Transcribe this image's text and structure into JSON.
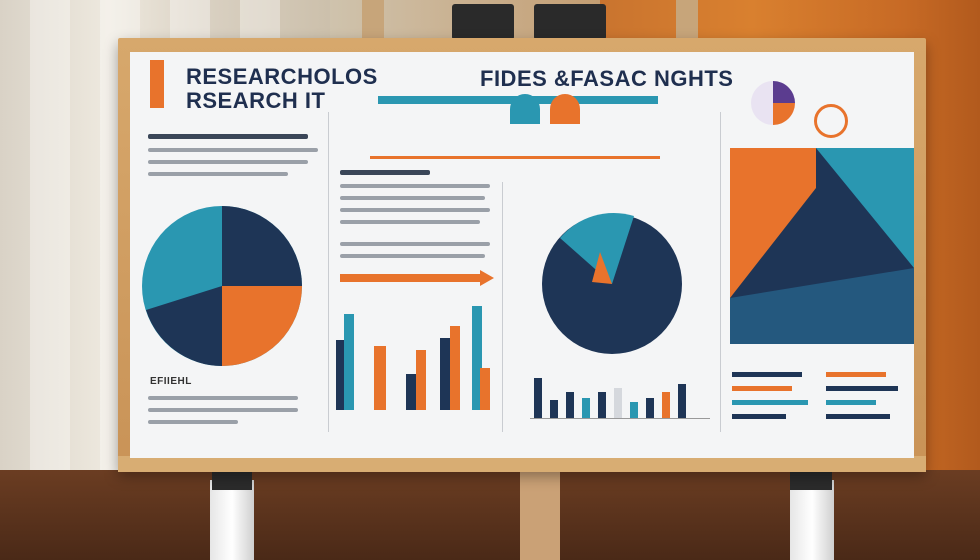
{
  "poster": {
    "title_left_line1": "RESEARCHOLOS",
    "title_left_line2": "RSEARCH IT",
    "title_right": "FIDES &FASAC NGHTS",
    "label_efiiehl": "EFIIEHL"
  },
  "colors": {
    "navy": "#1e3556",
    "teal": "#2a97b1",
    "orange": "#e8732c",
    "wall_orange": "#cf742c",
    "frame_wood": "#d2a067"
  }
}
